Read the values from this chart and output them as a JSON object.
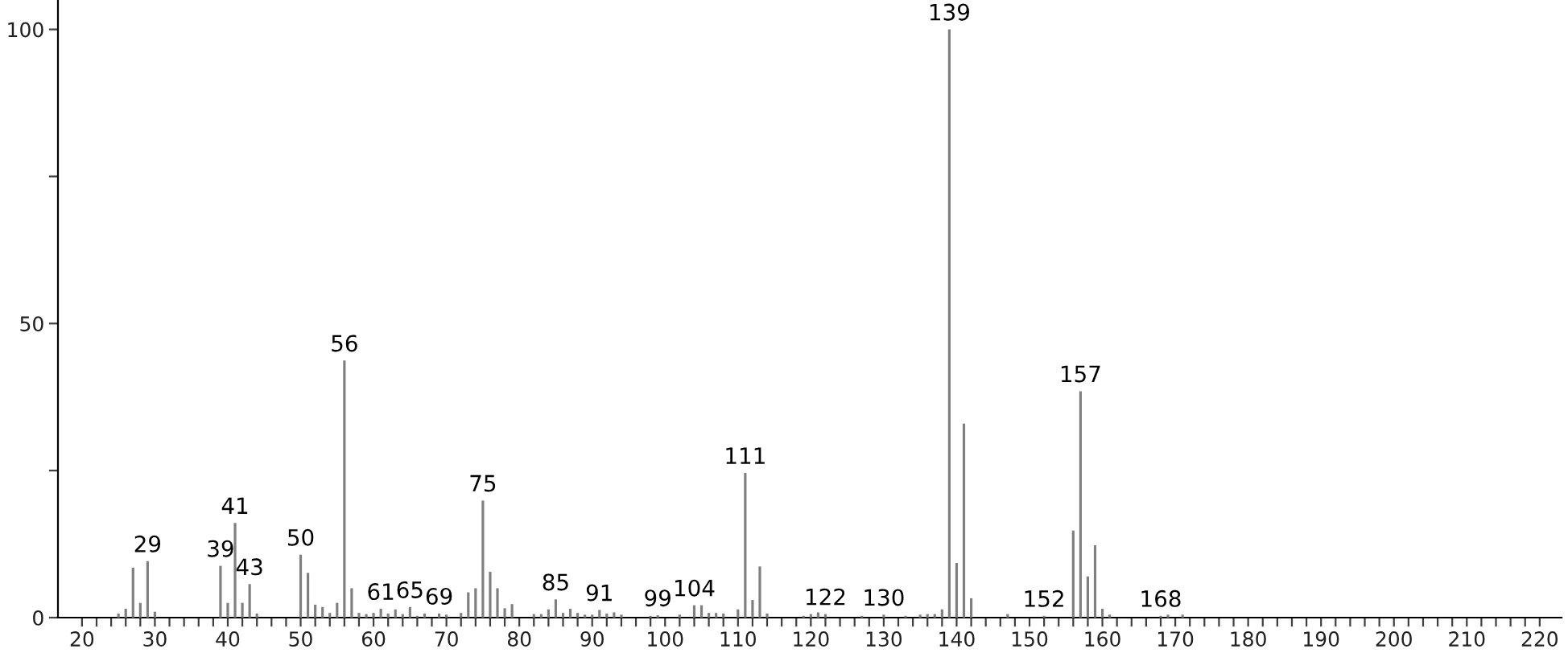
{
  "chart_data": {
    "type": "bar",
    "color": "#7f7f7f",
    "x": [
      25,
      26,
      27,
      28,
      29,
      30,
      39,
      40,
      41,
      42,
      43,
      44,
      50,
      51,
      52,
      53,
      54,
      55,
      56,
      57,
      58,
      59,
      60,
      61,
      62,
      63,
      64,
      65,
      66,
      67,
      69,
      70,
      72,
      73,
      74,
      75,
      76,
      77,
      78,
      79,
      82,
      83,
      84,
      85,
      86,
      87,
      88,
      89,
      90,
      91,
      92,
      93,
      94,
      98,
      99,
      102,
      104,
      105,
      106,
      107,
      108,
      110,
      111,
      112,
      113,
      114,
      119,
      120,
      121,
      122,
      127,
      130,
      133,
      135,
      136,
      137,
      138,
      139,
      140,
      141,
      142,
      147,
      152,
      156,
      157,
      158,
      159,
      160,
      161,
      168,
      169,
      171
    ],
    "values": [
      0.7,
      1.5,
      8.5,
      2.5,
      9.6,
      1,
      8.8,
      2.5,
      16.1,
      2.5,
      5.7,
      0.7,
      10.7,
      7.6,
      2.2,
      1.8,
      0.8,
      2.5,
      43.7,
      5,
      0.8,
      0.6,
      0.8,
      1.5,
      0.7,
      1.4,
      0.6,
      1.8,
      0.3,
      0.7,
      0.7,
      0.5,
      0.8,
      4.3,
      5,
      19.9,
      7.8,
      5,
      1.6,
      2.3,
      0.6,
      0.6,
      1.4,
      3.1,
      0.8,
      1.5,
      0.8,
      0.5,
      0.5,
      1.3,
      0.7,
      0.9,
      0.5,
      0.3,
      0.4,
      0.5,
      2.1,
      2.1,
      0.8,
      0.8,
      0.7,
      1.4,
      24.6,
      3,
      8.7,
      0.7,
      0.3,
      0.6,
      0.9,
      0.6,
      0.3,
      0.5,
      0.3,
      0.5,
      0.6,
      0.6,
      1.4,
      100,
      9.3,
      33,
      3.3,
      0.6,
      0.3,
      14.8,
      38.5,
      7,
      12.3,
      1.5,
      0.5,
      0.3,
      0.5,
      0.5
    ],
    "annotations": [
      {
        "text": "29",
        "x": 29,
        "y": 9.6
      },
      {
        "text": "39",
        "x": 39,
        "y": 8.8
      },
      {
        "text": "41",
        "x": 41,
        "y": 16.1
      },
      {
        "text": "43",
        "x": 43,
        "y": 5.7
      },
      {
        "text": "50",
        "x": 50,
        "y": 10.7
      },
      {
        "text": "56",
        "x": 56,
        "y": 43.7
      },
      {
        "text": "61",
        "x": 61,
        "y": 1.5
      },
      {
        "text": "65",
        "x": 65,
        "y": 1.8
      },
      {
        "text": "69",
        "x": 69,
        "y": 0.7
      },
      {
        "text": "75",
        "x": 75,
        "y": 19.9
      },
      {
        "text": "85",
        "x": 85,
        "y": 3.1
      },
      {
        "text": "91",
        "x": 91,
        "y": 1.3
      },
      {
        "text": "99",
        "x": 99,
        "y": 0.4
      },
      {
        "text": "104",
        "x": 104,
        "y": 2.1
      },
      {
        "text": "111",
        "x": 111,
        "y": 24.6
      },
      {
        "text": "122",
        "x": 122,
        "y": 0.6
      },
      {
        "text": "130",
        "x": 130,
        "y": 0.5
      },
      {
        "text": "139",
        "x": 139,
        "y": 100
      },
      {
        "text": "152",
        "x": 152,
        "y": 0.3
      },
      {
        "text": "157",
        "x": 157,
        "y": 38.5
      },
      {
        "text": "168",
        "x": 168,
        "y": 0.3
      }
    ],
    "xlim": [
      16.7,
      223
    ],
    "ylim": [
      0,
      105
    ],
    "xticks": [
      20,
      {
        "value": 22,
        "label": null
      },
      {
        "value": 24,
        "label": null
      },
      {
        "value": 26,
        "label": null
      },
      {
        "value": 28,
        "label": null
      },
      30,
      {
        "value": 32,
        "label": null
      },
      {
        "value": 34,
        "label": null
      },
      {
        "value": 36,
        "label": null
      },
      {
        "value": 38,
        "label": null
      },
      40,
      {
        "value": 42,
        "label": null
      },
      {
        "value": 44,
        "label": null
      },
      {
        "value": 46,
        "label": null
      },
      {
        "value": 48,
        "label": null
      },
      50,
      {
        "value": 52,
        "label": null
      },
      {
        "value": 54,
        "label": null
      },
      {
        "value": 56,
        "label": null
      },
      {
        "value": 58,
        "label": null
      },
      60,
      {
        "value": 62,
        "label": null
      },
      {
        "value": 64,
        "label": null
      },
      {
        "value": 66,
        "label": null
      },
      {
        "value": 68,
        "label": null
      },
      70,
      {
        "value": 72,
        "label": null
      },
      {
        "value": 74,
        "label": null
      },
      {
        "value": 76,
        "label": null
      },
      {
        "value": 78,
        "label": null
      },
      80,
      {
        "value": 82,
        "label": null
      },
      {
        "value": 84,
        "label": null
      },
      {
        "value": 86,
        "label": null
      },
      {
        "value": 88,
        "label": null
      },
      90,
      {
        "value": 92,
        "label": null
      },
      {
        "value": 94,
        "label": null
      },
      {
        "value": 96,
        "label": null
      },
      {
        "value": 98,
        "label": null
      },
      100,
      {
        "value": 102,
        "label": null
      },
      {
        "value": 104,
        "label": null
      },
      {
        "value": 106,
        "label": null
      },
      {
        "value": 108,
        "label": null
      },
      110,
      {
        "value": 112,
        "label": null
      },
      {
        "value": 114,
        "label": null
      },
      {
        "value": 116,
        "label": null
      },
      {
        "value": 118,
        "label": null
      },
      120,
      {
        "value": 122,
        "label": null
      },
      {
        "value": 124,
        "label": null
      },
      {
        "value": 126,
        "label": null
      },
      {
        "value": 128,
        "label": null
      },
      130,
      {
        "value": 132,
        "label": null
      },
      {
        "value": 134,
        "label": null
      },
      {
        "value": 136,
        "label": null
      },
      {
        "value": 138,
        "label": null
      },
      140,
      {
        "value": 142,
        "label": null
      },
      {
        "value": 144,
        "label": null
      },
      {
        "value": 146,
        "label": null
      },
      {
        "value": 148,
        "label": null
      },
      150,
      {
        "value": 152,
        "label": null
      },
      {
        "value": 154,
        "label": null
      },
      {
        "value": 156,
        "label": null
      },
      {
        "value": 158,
        "label": null
      },
      160,
      {
        "value": 162,
        "label": null
      },
      {
        "value": 164,
        "label": null
      },
      {
        "value": 166,
        "label": null
      },
      {
        "value": 168,
        "label": null
      },
      170,
      {
        "value": 172,
        "label": null
      },
      {
        "value": 174,
        "label": null
      },
      {
        "value": 176,
        "label": null
      },
      {
        "value": 178,
        "label": null
      },
      180,
      {
        "value": 182,
        "label": null
      },
      {
        "value": 184,
        "label": null
      },
      {
        "value": 186,
        "label": null
      },
      {
        "value": 188,
        "label": null
      },
      190,
      {
        "value": 192,
        "label": null
      },
      {
        "value": 194,
        "label": null
      },
      {
        "value": 196,
        "label": null
      },
      {
        "value": 198,
        "label": null
      },
      200,
      {
        "value": 202,
        "label": null
      },
      {
        "value": 204,
        "label": null
      },
      {
        "value": 206,
        "label": null
      },
      {
        "value": 208,
        "label": null
      },
      210,
      {
        "value": 212,
        "label": null
      },
      {
        "value": 214,
        "label": null
      },
      {
        "value": 216,
        "label": null
      },
      {
        "value": 218,
        "label": null
      },
      220
    ],
    "yticks": [
      0,
      {
        "value": 25,
        "label": null
      },
      50,
      {
        "value": 75,
        "label": null
      },
      100
    ]
  }
}
